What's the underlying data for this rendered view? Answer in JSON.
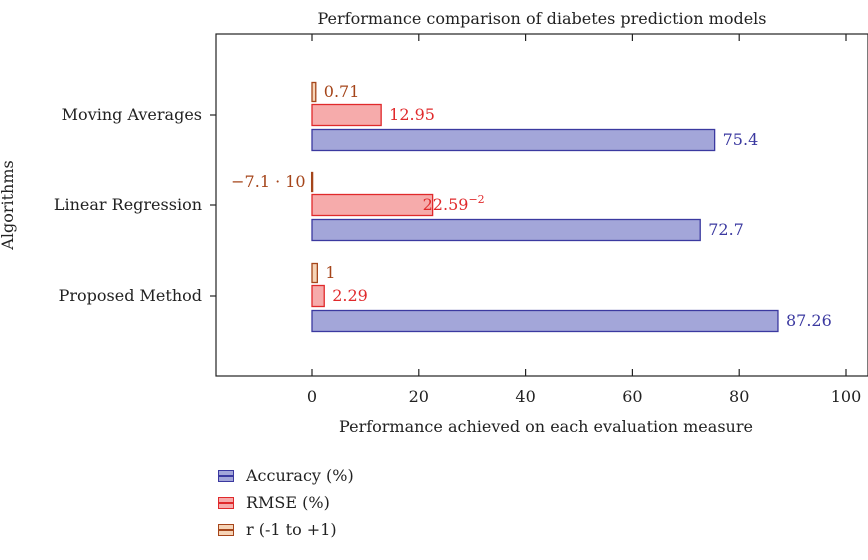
{
  "chart_data": {
    "type": "bar",
    "orientation": "horizontal",
    "title": "Performance comparison of diabetes prediction models",
    "xlabel": "Performance achieved on each evaluation measure",
    "ylabel": "Algorithms",
    "xlim": [
      -20,
      105
    ],
    "xticks": [
      0,
      20,
      40,
      60,
      80,
      100
    ],
    "xtick_labels": [
      "0",
      "20",
      "40",
      "60",
      "80",
      "100"
    ],
    "categories": [
      "Proposed Method",
      "Linear Regression",
      "Moving Averages"
    ],
    "series": [
      {
        "name": "Accuracy (%)",
        "values": [
          87.26,
          72.7,
          75.4
        ],
        "labels": [
          "87.26",
          "72.7",
          "75.4"
        ],
        "fill": "#a3a6d9",
        "stroke": "#3b39a0",
        "label_color": "#3b39a0"
      },
      {
        "name": "RMSE (%)",
        "values": [
          2.29,
          22.59,
          12.95
        ],
        "labels": [
          "2.29",
          "22.59",
          "12.95"
        ],
        "fill": "#f6abab",
        "stroke": "#e0292b",
        "label_color": "#e0292b"
      },
      {
        "name": "r (-1 to +1)",
        "values": [
          1,
          -0.071,
          0.71
        ],
        "labels": [
          "1",
          "−7.1 · 10",
          "0.71"
        ],
        "fill": "#f6d4b7",
        "stroke": "#a5451a",
        "label_color": "#a5451a"
      }
    ],
    "label_superscripts": {
      "1.1": "−2"
    },
    "grid": false,
    "legend_position": "bottom"
  }
}
